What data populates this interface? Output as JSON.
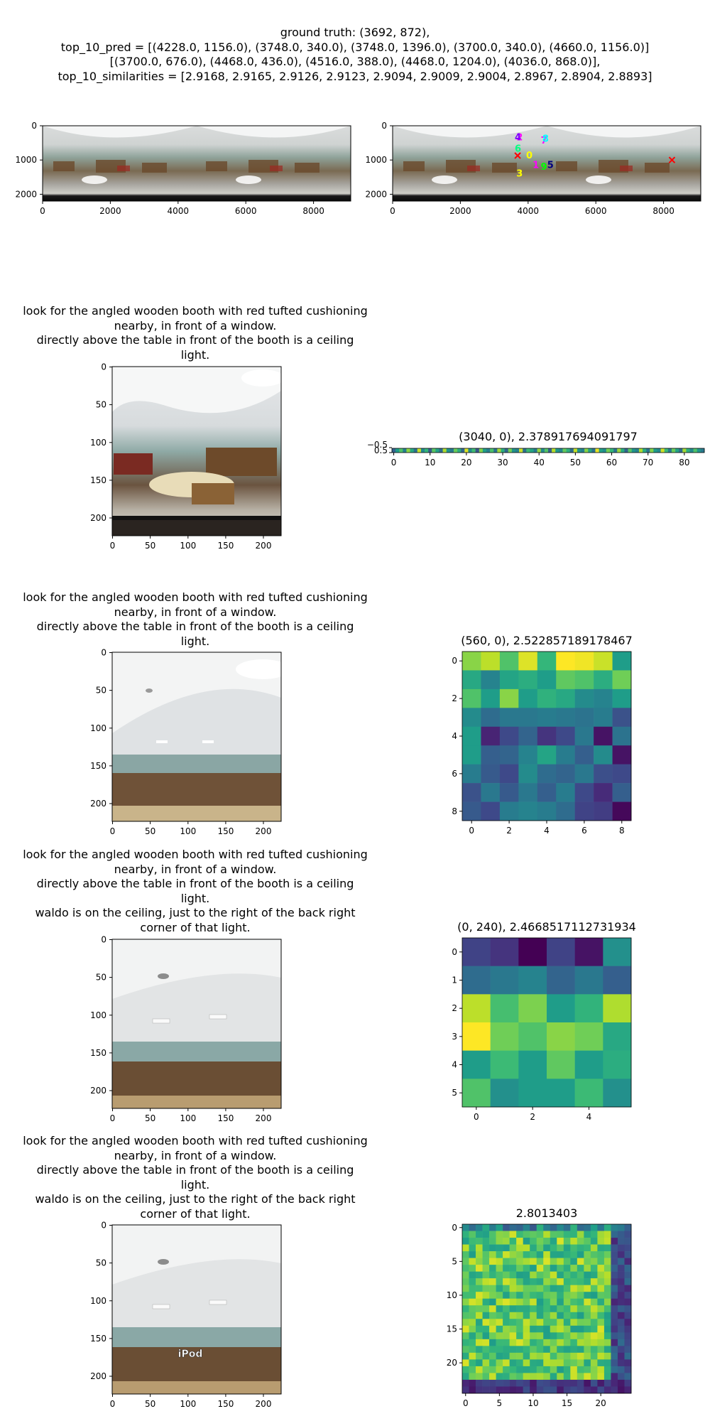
{
  "header": {
    "lines": [
      "ground truth: (3692, 872),",
      "top_10_pred = [(4228.0, 1156.0), (3748.0, 340.0), (3748.0, 1396.0), (3700.0, 340.0), (4660.0, 1156.0)]",
      "[(3700.0, 676.0), (4468.0, 436.0), (4516.0, 388.0), (4468.0, 1204.0), (4036.0, 868.0)],",
      "top_10_similarities = [2.9168, 2.9165, 2.9126, 2.9123, 2.9094, 2.9009, 2.9004, 2.8967, 2.8904, 2.8893]"
    ]
  },
  "panorama": {
    "x_ticks": [
      "0",
      "2000",
      "4000",
      "6000",
      "8000"
    ],
    "y_ticks": [
      "0",
      "1000",
      "2000"
    ],
    "marker_labels": [
      "1",
      "2",
      "3",
      "4",
      "5",
      "6",
      "7",
      "8",
      "9",
      "0"
    ]
  },
  "instructions": {
    "line_a": "look for the angled wooden booth with red tufted cushioning",
    "line_b": "nearby, in front of a window.",
    "line_c": "directly above the table in front of the booth is a ceiling",
    "line_d": "light.",
    "line_e": "waldo is on the ceiling, just to the right of the back right",
    "line_f": "corner of that light."
  },
  "crop_axes": {
    "x_ticks": [
      "0",
      "50",
      "100",
      "150",
      "200"
    ],
    "y_ticks": [
      "0",
      "50",
      "100",
      "150",
      "200"
    ]
  },
  "crop4_overlay_label": "iPod",
  "heatmaps": [
    {
      "title": "(3040, 0), 2.378917694091797",
      "x_ticks": [
        "0",
        "10",
        "20",
        "30",
        "40",
        "50",
        "60",
        "70",
        "80"
      ],
      "y_ticks": [
        "−0.5",
        "0.5"
      ]
    },
    {
      "title": "(560, 0), 2.522857189178467",
      "x_ticks": [
        "0",
        "2",
        "4",
        "6",
        "8"
      ],
      "y_ticks": [
        "0",
        "2",
        "4",
        "6",
        "8"
      ]
    },
    {
      "title": "(0, 240), 2.4668517112731934",
      "x_ticks": [
        "0",
        "2",
        "4"
      ],
      "y_ticks": [
        "0",
        "1",
        "2",
        "3",
        "4",
        "5"
      ]
    },
    {
      "title": "2.8013403",
      "x_ticks": [
        "0",
        "5",
        "10",
        "15",
        "20"
      ],
      "y_ticks": [
        "0",
        "5",
        "10",
        "15",
        "20"
      ]
    }
  ],
  "chart_data": [
    {
      "type": "scatter",
      "ground_truth": {
        "x": 3692,
        "y": 872
      },
      "x": [
        4228,
        3748,
        3748,
        3700,
        4660,
        3700,
        4468,
        4516,
        4468,
        4036
      ],
      "y": [
        1156,
        340,
        1396,
        340,
        1156,
        676,
        436,
        388,
        1204,
        868
      ],
      "similarities": [
        2.9168,
        2.9165,
        2.9126,
        2.9123,
        2.9094,
        2.9009,
        2.9004,
        2.8967,
        2.8904,
        2.8893
      ],
      "xlim": [
        0,
        9100
      ],
      "ylim": [
        2200,
        0
      ]
    },
    {
      "type": "heatmap",
      "rows": 1,
      "cols": 86,
      "values": [
        [
          0.31,
          0.55,
          0.72,
          0.44,
          0.83,
          0.61,
          0.38,
          0.92,
          0.47,
          0.66,
          0.29,
          0.74,
          0.58,
          0.35,
          0.88,
          0.52,
          0.41,
          0.77,
          0.63,
          0.33,
          0.95,
          0.49,
          0.69,
          0.27,
          0.81,
          0.56,
          0.43,
          0.71,
          0.39,
          0.86,
          0.62,
          0.34,
          0.79,
          0.51,
          0.45,
          0.93,
          0.37,
          0.68,
          0.58,
          0.42,
          0.84,
          0.48,
          0.73,
          0.31,
          0.89,
          0.54,
          0.46,
          0.76,
          0.64,
          0.36,
          0.91,
          0.53,
          0.44,
          0.82,
          0.59,
          0.38,
          0.97,
          0.57,
          0.49,
          0.79,
          0.66,
          0.4,
          0.85,
          0.61,
          0.33,
          0.74,
          0.52,
          0.45,
          0.88,
          0.62,
          0.39,
          0.81,
          0.55,
          0.47,
          0.93,
          0.68,
          0.42,
          0.77,
          0.58,
          0.36,
          0.86,
          0.64,
          0.48,
          0.72,
          0.53,
          0.41
        ]
      ]
    },
    {
      "type": "heatmap",
      "rows": 9,
      "cols": 9,
      "values": [
        [
          0.82,
          0.9,
          0.72,
          0.95,
          0.66,
          1.0,
          0.98,
          0.92,
          0.55
        ],
        [
          0.6,
          0.45,
          0.58,
          0.62,
          0.55,
          0.75,
          0.72,
          0.62,
          0.78
        ],
        [
          0.72,
          0.55,
          0.82,
          0.55,
          0.64,
          0.6,
          0.48,
          0.45,
          0.55
        ],
        [
          0.48,
          0.35,
          0.4,
          0.4,
          0.42,
          0.4,
          0.38,
          0.42,
          0.25
        ],
        [
          0.55,
          0.1,
          0.22,
          0.32,
          0.15,
          0.22,
          0.4,
          0.05,
          0.38
        ],
        [
          0.55,
          0.3,
          0.32,
          0.45,
          0.58,
          0.42,
          0.3,
          0.48,
          0.05
        ],
        [
          0.42,
          0.28,
          0.22,
          0.48,
          0.35,
          0.32,
          0.4,
          0.24,
          0.22
        ],
        [
          0.25,
          0.4,
          0.28,
          0.4,
          0.3,
          0.42,
          0.22,
          0.12,
          0.3
        ],
        [
          0.28,
          0.22,
          0.42,
          0.45,
          0.42,
          0.35,
          0.2,
          0.18,
          0.02
        ]
      ]
    },
    {
      "type": "heatmap",
      "rows": 6,
      "cols": 6,
      "values": [
        [
          0.2,
          0.15,
          0.0,
          0.2,
          0.05,
          0.5
        ],
        [
          0.35,
          0.4,
          0.45,
          0.32,
          0.4,
          0.3
        ],
        [
          0.9,
          0.7,
          0.8,
          0.55,
          0.65,
          0.88
        ],
        [
          1.0,
          0.78,
          0.72,
          0.82,
          0.78,
          0.6
        ],
        [
          0.55,
          0.68,
          0.55,
          0.75,
          0.55,
          0.62
        ],
        [
          0.72,
          0.5,
          0.55,
          0.55,
          0.68,
          0.5
        ]
      ]
    },
    {
      "type": "heatmap",
      "rows": 25,
      "cols": 25,
      "values": "procedural"
    }
  ]
}
